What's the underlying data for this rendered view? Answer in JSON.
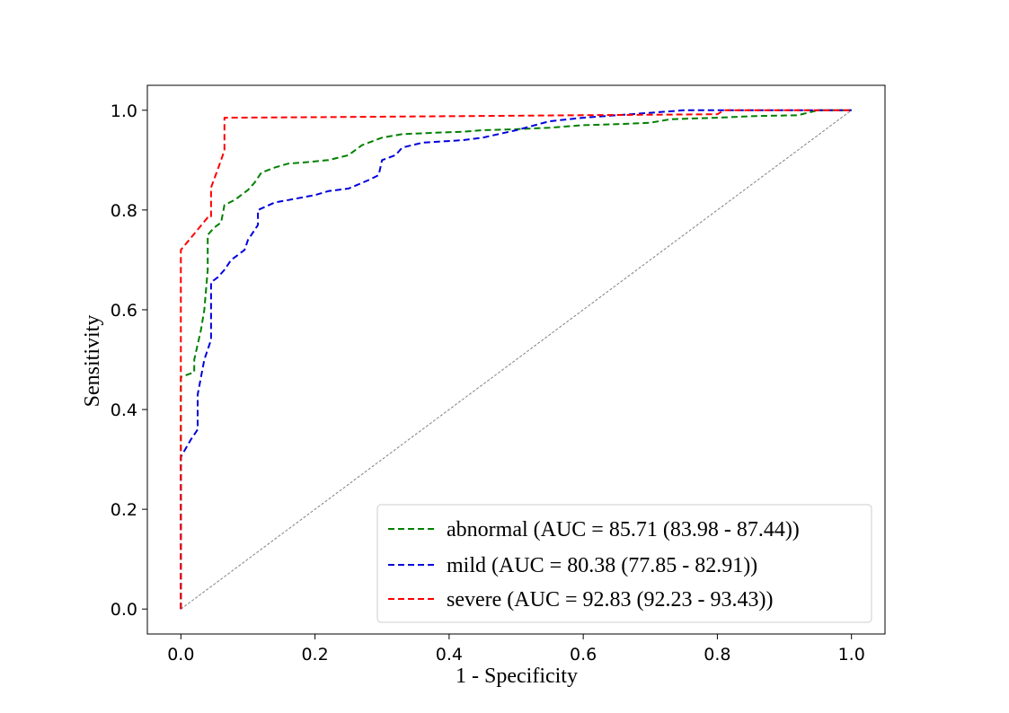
{
  "chart_data": {
    "type": "line",
    "title": "",
    "xlabel": "1 - Specificity",
    "ylabel": "Sensitivity",
    "xlim": [
      -0.05,
      1.05
    ],
    "ylim": [
      -0.05,
      1.05
    ],
    "xticks": [
      0.0,
      0.2,
      0.4,
      0.6,
      0.8,
      1.0
    ],
    "yticks": [
      0.0,
      0.2,
      0.4,
      0.6,
      0.8,
      1.0
    ],
    "tick_labels_x": [
      "0.0",
      "0.2",
      "0.4",
      "0.6",
      "0.8",
      "1.0"
    ],
    "tick_labels_y": [
      "0.0",
      "0.2",
      "0.4",
      "0.6",
      "0.8",
      "1.0"
    ],
    "grid": false,
    "legend_position": "lower-right",
    "diagonal": {
      "x": [
        0,
        1
      ],
      "y": [
        0,
        1
      ],
      "color": "#808080",
      "style": "dashed"
    },
    "series": [
      {
        "name": "abnormal",
        "label": "abnormal (AUC = 85.71 (83.98 - 87.44))",
        "color": "#008000",
        "style": "dashed",
        "x": [
          0.0,
          0.0,
          0.02,
          0.02,
          0.03,
          0.035,
          0.04,
          0.04,
          0.05,
          0.06,
          0.065,
          0.08,
          0.1,
          0.11,
          0.12,
          0.14,
          0.16,
          0.18,
          0.22,
          0.25,
          0.27,
          0.3,
          0.33,
          0.38,
          0.42,
          0.45,
          0.5,
          0.55,
          0.6,
          0.65,
          0.7,
          0.73,
          0.8,
          0.85,
          0.92,
          0.95,
          1.0
        ],
        "y": [
          0.0,
          0.465,
          0.475,
          0.5,
          0.56,
          0.6,
          0.68,
          0.75,
          0.765,
          0.775,
          0.81,
          0.82,
          0.84,
          0.855,
          0.875,
          0.885,
          0.893,
          0.895,
          0.9,
          0.91,
          0.93,
          0.945,
          0.952,
          0.955,
          0.957,
          0.96,
          0.962,
          0.965,
          0.97,
          0.972,
          0.975,
          0.982,
          0.985,
          0.988,
          0.99,
          1.0,
          1.0
        ]
      },
      {
        "name": "mild",
        "label": "mild (AUC = 80.38 (77.85 - 82.91))",
        "color": "#0000dd",
        "style": "dashed",
        "x": [
          0.0,
          0.0,
          0.015,
          0.025,
          0.025,
          0.035,
          0.045,
          0.045,
          0.055,
          0.065,
          0.075,
          0.085,
          0.095,
          0.1,
          0.11,
          0.115,
          0.115,
          0.14,
          0.16,
          0.2,
          0.22,
          0.25,
          0.28,
          0.295,
          0.3,
          0.32,
          0.33,
          0.36,
          0.42,
          0.45,
          0.5,
          0.55,
          0.6,
          0.65,
          0.7,
          0.75,
          1.0
        ],
        "y": [
          0.0,
          0.305,
          0.34,
          0.36,
          0.43,
          0.5,
          0.54,
          0.655,
          0.665,
          0.68,
          0.7,
          0.71,
          0.72,
          0.74,
          0.76,
          0.77,
          0.8,
          0.815,
          0.82,
          0.83,
          0.838,
          0.843,
          0.86,
          0.87,
          0.9,
          0.91,
          0.925,
          0.935,
          0.94,
          0.945,
          0.96,
          0.978,
          0.985,
          0.99,
          0.995,
          1.0,
          1.0
        ]
      },
      {
        "name": "severe",
        "label": "severe (AUC = 92.83 (92.23 - 93.43))",
        "color": "#ff0000",
        "style": "dashed",
        "x": [
          0.0,
          0.0,
          0.04,
          0.045,
          0.045,
          0.06,
          0.065,
          0.065,
          0.2,
          0.4,
          0.6,
          0.8,
          0.81,
          1.0
        ],
        "y": [
          0.0,
          0.72,
          0.785,
          0.785,
          0.845,
          0.9,
          0.92,
          0.985,
          0.986,
          0.988,
          0.99,
          0.992,
          1.0,
          1.0
        ]
      }
    ]
  }
}
